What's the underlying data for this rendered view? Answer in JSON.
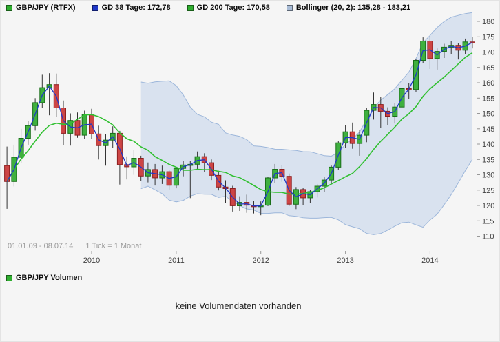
{
  "legend": {
    "items": [
      {
        "label": "GBP/JPY (RTFX)",
        "color": "#2fae2f"
      },
      {
        "label": "GD 38 Tage: 172,78",
        "color": "#2038c8"
      },
      {
        "label": "GD 200 Tage: 170,58",
        "color": "#2fae2f"
      },
      {
        "label": "Bollinger (20, 2): 135,28 - 183,21",
        "color": "#a9bcd6"
      }
    ]
  },
  "footer": {
    "range": "01.01.09 - 08.07.14",
    "tick_info": "1 Tick = 1 Monat"
  },
  "volume_panel": {
    "legend_label": "GBP/JPY Volumen",
    "legend_color": "#2fae2f",
    "message": "keine Volumendaten vorhanden"
  },
  "chart_data": {
    "type": "candlestick",
    "symbol": "GBP/JPY (RTFX)",
    "tick_interval": "1 Monat",
    "date_range": "01.01.09 - 08.07.14",
    "ylim": [
      108,
      184
    ],
    "y_ticks": [
      180,
      175,
      170,
      165,
      160,
      155,
      150,
      145,
      140,
      135,
      130,
      125,
      120,
      115,
      110
    ],
    "x_ticks": [
      {
        "index": 12,
        "label": "2010"
      },
      {
        "index": 24,
        "label": "2011"
      },
      {
        "index": 36,
        "label": "2012"
      },
      {
        "index": 48,
        "label": "2013"
      },
      {
        "index": 60,
        "label": "2014"
      }
    ],
    "candles": [
      [
        133.0,
        139.2,
        118.9,
        127.8
      ],
      [
        127.8,
        139.8,
        126.2,
        135.7
      ],
      [
        135.7,
        145.0,
        133.7,
        141.9
      ],
      [
        141.9,
        147.6,
        139.8,
        146.0
      ],
      [
        146.0,
        155.0,
        144.4,
        153.5
      ],
      [
        153.5,
        162.6,
        151.9,
        158.4
      ],
      [
        158.4,
        163.1,
        149.4,
        159.4
      ],
      [
        159.4,
        163.0,
        149.0,
        151.8
      ],
      [
        151.8,
        154.2,
        139.7,
        143.5
      ],
      [
        143.5,
        150.0,
        139.5,
        147.7
      ],
      [
        147.7,
        150.3,
        142.1,
        142.9
      ],
      [
        142.9,
        150.9,
        141.6,
        149.7
      ],
      [
        149.7,
        151.5,
        141.6,
        143.3
      ],
      [
        143.3,
        146.0,
        135.0,
        139.5
      ],
      [
        139.5,
        143.3,
        133.0,
        141.3
      ],
      [
        141.3,
        145.8,
        138.8,
        143.5
      ],
      [
        143.5,
        144.3,
        126.8,
        133.3
      ],
      [
        133.3,
        136.0,
        128.5,
        132.6
      ],
      [
        132.6,
        138.0,
        130.0,
        135.4
      ],
      [
        135.4,
        136.2,
        127.9,
        129.6
      ],
      [
        129.6,
        134.0,
        127.5,
        131.7
      ],
      [
        131.7,
        133.5,
        126.5,
        129.0
      ],
      [
        129.0,
        133.0,
        127.0,
        131.0
      ],
      [
        131.0,
        131.5,
        125.2,
        126.6
      ],
      [
        126.6,
        132.5,
        125.6,
        132.1
      ],
      [
        132.1,
        134.5,
        129.5,
        133.2
      ],
      [
        133.2,
        134.4,
        122.4,
        133.4
      ],
      [
        133.4,
        137.6,
        131.6,
        135.9
      ],
      [
        135.9,
        137.0,
        130.9,
        133.9
      ],
      [
        133.9,
        135.0,
        128.3,
        129.8
      ],
      [
        129.8,
        131.3,
        124.9,
        126.0
      ],
      [
        126.0,
        128.2,
        120.9,
        125.5
      ],
      [
        125.5,
        126.4,
        118.0,
        119.9
      ],
      [
        119.9,
        123.0,
        118.2,
        121.0
      ],
      [
        121.0,
        123.5,
        117.6,
        120.1
      ],
      [
        120.1,
        121.5,
        117.4,
        119.6
      ],
      [
        119.6,
        121.3,
        116.8,
        120.1
      ],
      [
        120.1,
        129.3,
        119.8,
        129.0
      ],
      [
        129.0,
        133.5,
        127.3,
        131.8
      ],
      [
        131.8,
        133.1,
        127.7,
        129.5
      ],
      [
        129.5,
        130.4,
        119.8,
        120.4
      ],
      [
        120.4,
        126.0,
        118.8,
        125.2
      ],
      [
        125.2,
        125.8,
        120.2,
        122.5
      ],
      [
        122.5,
        125.0,
        120.7,
        124.5
      ],
      [
        124.5,
        127.0,
        122.6,
        126.3
      ],
      [
        126.3,
        129.2,
        124.5,
        128.3
      ],
      [
        128.3,
        133.0,
        126.9,
        132.5
      ],
      [
        132.5,
        141.0,
        131.6,
        140.4
      ],
      [
        140.4,
        146.3,
        138.8,
        144.0
      ],
      [
        144.0,
        147.0,
        138.5,
        140.2
      ],
      [
        140.2,
        144.5,
        136.2,
        142.9
      ],
      [
        142.9,
        151.9,
        140.6,
        151.0
      ],
      [
        151.0,
        156.8,
        148.0,
        152.9
      ],
      [
        152.9,
        155.3,
        145.4,
        150.7
      ],
      [
        150.7,
        152.0,
        146.2,
        149.1
      ],
      [
        149.1,
        153.4,
        146.7,
        152.1
      ],
      [
        152.1,
        158.8,
        149.9,
        158.1
      ],
      [
        158.1,
        160.0,
        154.8,
        157.8
      ],
      [
        157.8,
        167.8,
        156.9,
        167.3
      ],
      [
        167.3,
        174.8,
        166.5,
        173.6
      ],
      [
        173.6,
        174.9,
        164.5,
        167.9
      ],
      [
        167.9,
        171.2,
        164.3,
        170.2
      ],
      [
        170.2,
        172.7,
        168.1,
        171.6
      ],
      [
        171.6,
        173.5,
        169.3,
        172.2
      ],
      [
        172.2,
        173.0,
        167.6,
        170.6
      ],
      [
        170.6,
        174.4,
        169.3,
        173.3
      ],
      [
        173.3,
        175.0,
        171.2,
        173.0
      ]
    ],
    "indicators": {
      "gd38": {
        "label": "GD 38 Tage",
        "value": "172,78",
        "color": "#2038c8",
        "period_ticks": 2
      },
      "gd200": {
        "label": "GD 200 Tage",
        "value": "170,58",
        "color": "#32c032",
        "period_ticks": 10
      },
      "bollinger": {
        "label": "Bollinger (20, 2)",
        "value": "135,28 - 183,21",
        "period_ticks": 20,
        "std_factor": 2
      }
    },
    "colors": {
      "up": "#3fb03f",
      "up_border": "#1a6f1a",
      "down": "#cc4545",
      "down_border": "#8e1f1f",
      "wick": "#333333",
      "band_fill": "#b9cde9",
      "band_edge": "#9cb6da",
      "background": "#f5f5f5"
    }
  }
}
